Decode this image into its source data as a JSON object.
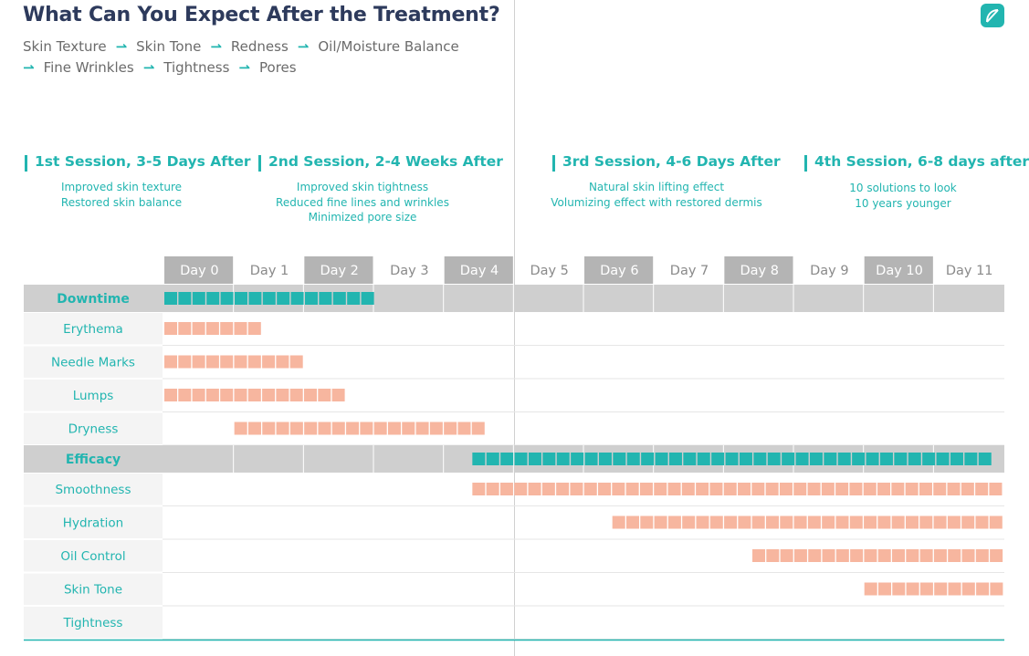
{
  "title": "What Can You Expect After the Treatment?",
  "steps_line1": [
    "Skin Texture",
    "Skin Tone",
    "Redness",
    "Oil/Moisture Balance"
  ],
  "steps_line2": [
    "Fine Wrinkles",
    "Tightness",
    "Pores"
  ],
  "arrow_glyph": "⇀",
  "sessions": [
    {
      "title": "1st Session, 3-5 Days After",
      "lines": [
        "Improved skin texture",
        "Restored skin balance"
      ]
    },
    {
      "title": "2nd Session, 2-4 Weeks After",
      "lines": [
        "Improved skin tightness",
        "Reduced fine lines and wrinkles",
        "Minimized pore size"
      ]
    },
    {
      "title": "3rd Session, 4-6 Days After",
      "lines": [
        "Natural skin lifting effect",
        "Volumizing effect with restored dermis"
      ]
    },
    {
      "title": "4th Session, 6-8 days after",
      "lines": [
        "10 solutions to look",
        "10 years younger"
      ]
    }
  ],
  "colors": {
    "teal": "#22b5b0",
    "salmon": "#f7b69f",
    "header_gray": "#b4b4b4",
    "row_gray": "#cfcfcf",
    "label_bg": "#f4f4f4",
    "title_navy": "#2d3a5c"
  },
  "chart_data": {
    "type": "table",
    "days": [
      "Day 0",
      "Day 1",
      "Day 2",
      "Day 3",
      "Day 4",
      "Day 5",
      "Day 6",
      "Day 7",
      "Day 8",
      "Day 9",
      "Day 10",
      "Day 11"
    ],
    "highlighted_days": [
      "Day 0",
      "Day 2",
      "Day 4",
      "Day 6",
      "Day 8",
      "Day 10"
    ],
    "groups": [
      {
        "name": "Downtime",
        "range": [
          0,
          1.5
        ],
        "rows": [
          {
            "name": "Erythema",
            "start": 0,
            "end": 0.7
          },
          {
            "name": "Needle Marks",
            "start": 0,
            "end": 1.0
          },
          {
            "name": "Lumps",
            "start": 0,
            "end": 1.3
          },
          {
            "name": "Dryness",
            "start": 0.5,
            "end": 2.3
          }
        ]
      },
      {
        "name": "Efficacy",
        "range": [
          2.2,
          6
        ],
        "rows": [
          {
            "name": "Smoothness",
            "start": 2.2,
            "end": 6
          },
          {
            "name": "Hydration",
            "start": 3.2,
            "end": 6
          },
          {
            "name": "Oil Control",
            "start": 4.2,
            "end": 6
          },
          {
            "name": "Skin Tone",
            "start": 5.0,
            "end": 6
          },
          {
            "name": "Tightness",
            "start": null,
            "end": null
          }
        ]
      }
    ]
  }
}
